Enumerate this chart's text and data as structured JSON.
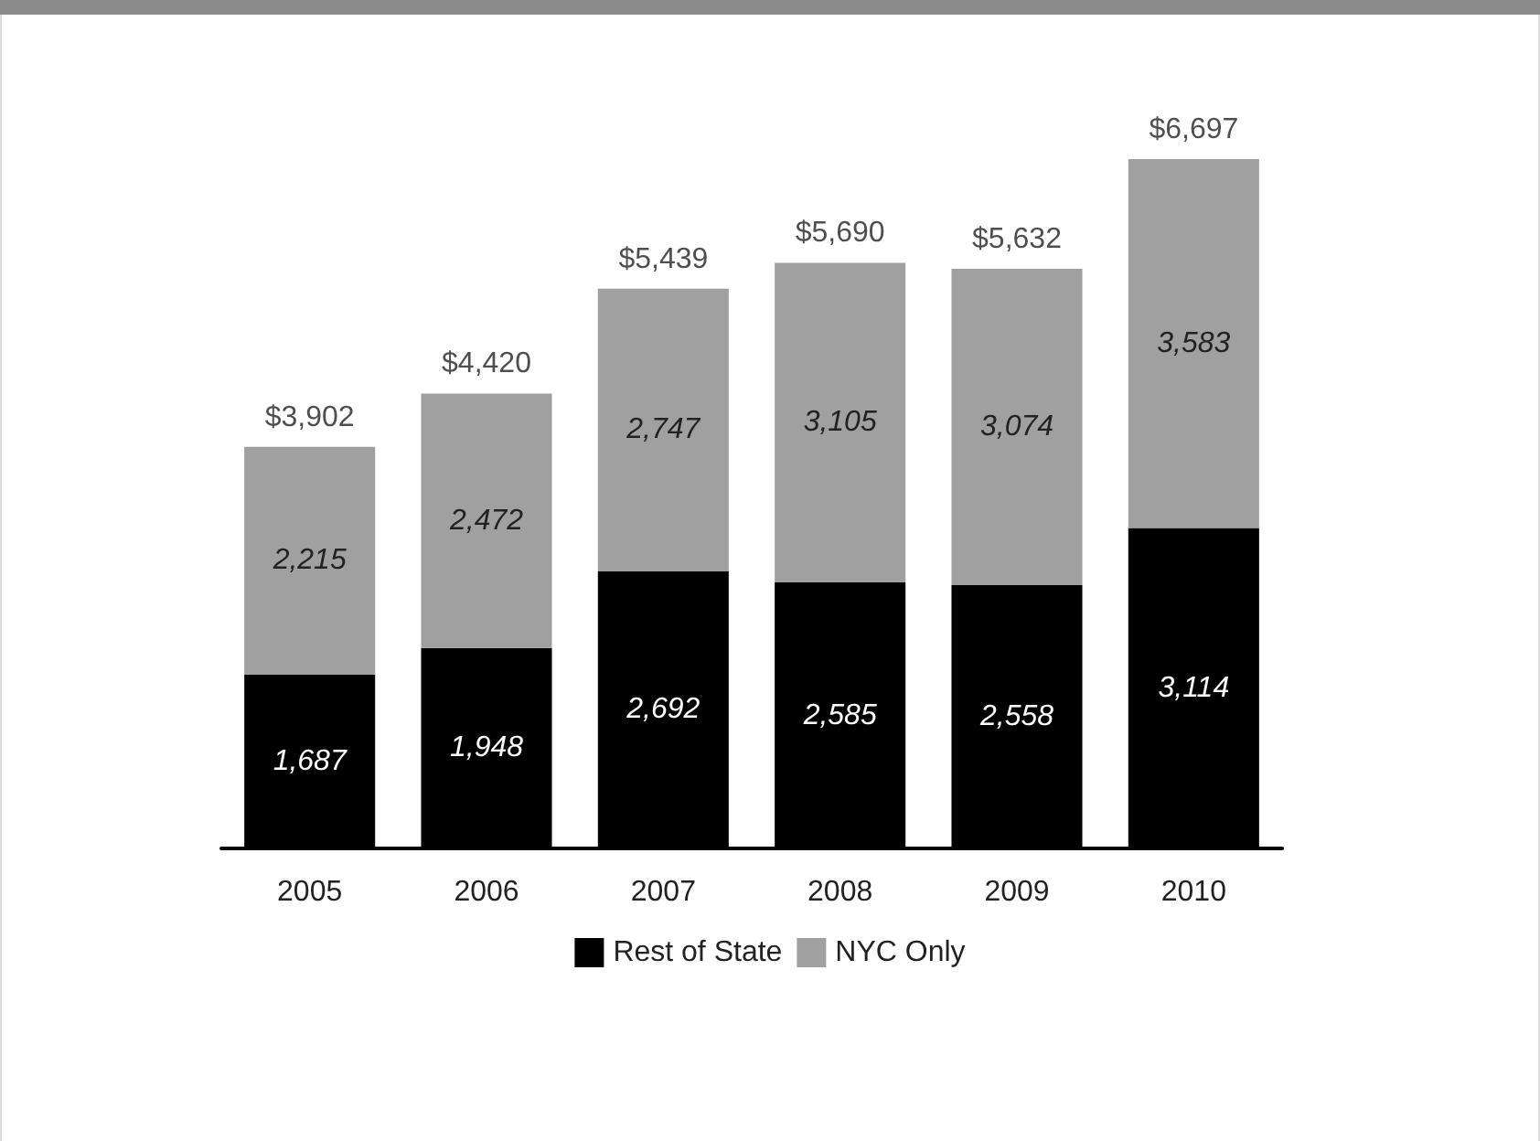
{
  "chart_data": {
    "type": "bar",
    "stacked": true,
    "categories": [
      "2005",
      "2006",
      "2007",
      "2008",
      "2009",
      "2010"
    ],
    "series": [
      {
        "name": "Rest of State",
        "color": "#000000",
        "values": [
          1687,
          1948,
          2692,
          2585,
          2558,
          3114
        ],
        "value_labels": [
          "1,687",
          "1,948",
          "2,692",
          "2,585",
          "2,558",
          "3,114"
        ]
      },
      {
        "name": "NYC Only",
        "color": "#a0a0a0",
        "values": [
          2215,
          2472,
          2747,
          3105,
          3074,
          3583
        ],
        "value_labels": [
          "2,215",
          "2,472",
          "2,747",
          "3,105",
          "3,074",
          "3,583"
        ]
      }
    ],
    "totals": [
      "$3,902",
      "$4,420",
      "$5,439",
      "$5,690",
      "$5,632",
      "$6,697"
    ],
    "legend": "bottom",
    "grid": false
  }
}
